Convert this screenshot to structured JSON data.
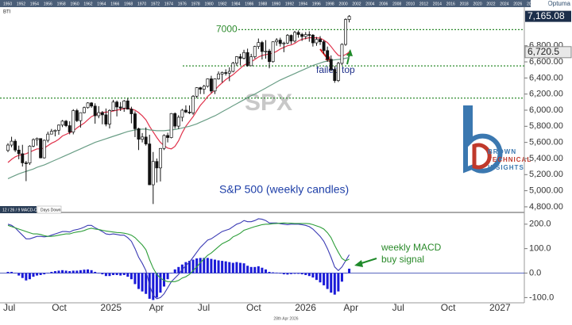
{
  "chart_data": [
    {
      "type": "candlestick",
      "title": "SPX",
      "subtitle": "S&P 500 (weekly candles)",
      "source_label": "BTI",
      "brand": "Optuma",
      "logo": [
        "BROWN",
        "TECHNICAL",
        "INSIGHTS"
      ],
      "overview_years": [
        "1950",
        "1952",
        "1954",
        "1956",
        "1958",
        "1960",
        "1962",
        "1964",
        "1966",
        "1968",
        "1970",
        "1972",
        "1974",
        "1976",
        "1978",
        "1980",
        "1982",
        "1984",
        "1986",
        "1988",
        "1990",
        "1992",
        "1994",
        "1996",
        "1998",
        "2000",
        "2002",
        "2004",
        "2006",
        "2008",
        "2010",
        "2012",
        "2014",
        "2016",
        "2018",
        "2020",
        "2022",
        "2024",
        "2026",
        "2028",
        "2030"
      ],
      "up_color": "#ffffff",
      "down_color": "#111111",
      "ohlc": [
        [
          5500,
          5590,
          5480,
          5567
        ],
        [
          5567,
          5670,
          5540,
          5615
        ],
        [
          5615,
          5640,
          5480,
          5505
        ],
        [
          5505,
          5560,
          5390,
          5459
        ],
        [
          5459,
          5570,
          5300,
          5346
        ],
        [
          5346,
          5370,
          5119,
          5344
        ],
        [
          5344,
          5565,
          5320,
          5554
        ],
        [
          5554,
          5650,
          5540,
          5634
        ],
        [
          5634,
          5660,
          5560,
          5648
        ],
        [
          5648,
          5650,
          5402,
          5408
        ],
        [
          5408,
          5636,
          5400,
          5626
        ],
        [
          5626,
          5733,
          5600,
          5703
        ],
        [
          5703,
          5767,
          5700,
          5738
        ],
        [
          5738,
          5760,
          5675,
          5751
        ],
        [
          5751,
          5822,
          5695,
          5815
        ],
        [
          5815,
          5878,
          5790,
          5864
        ],
        [
          5864,
          5878,
          5790,
          5808
        ],
        [
          5808,
          5862,
          5700,
          5729
        ],
        [
          5729,
          6012,
          5700,
          5995
        ],
        [
          5995,
          6017,
          5853,
          5870
        ],
        [
          5870,
          5972,
          5783,
          5969
        ],
        [
          5969,
          6045,
          5960,
          6032
        ],
        [
          6032,
          6099,
          6020,
          6090
        ],
        [
          6090,
          6100,
          6030,
          6051
        ],
        [
          6051,
          6085,
          5832,
          5931
        ],
        [
          5931,
          6050,
          5900,
          5970
        ],
        [
          5970,
          5990,
          5825,
          5942
        ],
        [
          5942,
          6021,
          5800,
          5827
        ],
        [
          5827,
          6010,
          5773,
          5997
        ],
        [
          5997,
          6128,
          5990,
          6101
        ],
        [
          6101,
          6120,
          5923,
          6040
        ],
        [
          6040,
          6101,
          5990,
          6026
        ],
        [
          6026,
          6127,
          5980,
          6115
        ],
        [
          6115,
          6147,
          6008,
          6013
        ],
        [
          6013,
          6043,
          5837,
          5955
        ],
        [
          5955,
          5986,
          5666,
          5770
        ],
        [
          5770,
          5782,
          5505,
          5639
        ],
        [
          5639,
          5716,
          5600,
          5667
        ],
        [
          5667,
          5786,
          5560,
          5581
        ],
        [
          5581,
          5695,
          5069,
          5074
        ],
        [
          5074,
          5481,
          4835,
          5363
        ],
        [
          5363,
          5400,
          5101,
          5283
        ],
        [
          5283,
          5529,
          5115,
          5525
        ],
        [
          5525,
          5700,
          5505,
          5686
        ],
        [
          5686,
          5720,
          5600,
          5660
        ],
        [
          5660,
          5964,
          5650,
          5958
        ],
        [
          5958,
          5972,
          5770,
          5802
        ],
        [
          5802,
          5938,
          5767,
          5912
        ],
        [
          5912,
          6017,
          5860,
          6000
        ],
        [
          6000,
          6060,
          5963,
          5977
        ],
        [
          5977,
          6059,
          5952,
          5967
        ],
        [
          5967,
          6187,
          5943,
          6173
        ],
        [
          6173,
          6284,
          6150,
          6279
        ],
        [
          6279,
          6290,
          6200,
          6260
        ],
        [
          6260,
          6315,
          6200,
          6297
        ],
        [
          6297,
          6395,
          6281,
          6389
        ],
        [
          6389,
          6427,
          6212,
          6238
        ],
        [
          6238,
          6395,
          6200,
          6389
        ],
        [
          6389,
          6481,
          6380,
          6450
        ],
        [
          6450,
          6480,
          6343,
          6467
        ],
        [
          6467,
          6508,
          6430,
          6460
        ],
        [
          6460,
          6532,
          6360,
          6482
        ],
        [
          6482,
          6600,
          6470,
          6584
        ],
        [
          6584,
          6671,
          6550,
          6664
        ],
        [
          6664,
          6700,
          6560,
          6644
        ],
        [
          6644,
          6750,
          6630,
          6716
        ],
        [
          6716,
          6764,
          6540,
          6552
        ],
        [
          6552,
          6700,
          6550,
          6664
        ],
        [
          6664,
          6800,
          6640,
          6791
        ],
        [
          6791,
          6890,
          6760,
          6840
        ],
        [
          6840,
          6860,
          6630,
          6728
        ],
        [
          6728,
          6870,
          6640,
          6734
        ],
        [
          6734,
          6760,
          6520,
          6603
        ],
        [
          6603,
          6855,
          6590,
          6849
        ],
        [
          6849,
          6895,
          6800,
          6870
        ],
        [
          6870,
          6900,
          6790,
          6827
        ],
        [
          6827,
          6850,
          6720,
          6834
        ],
        [
          6834,
          6945,
          6820,
          6929
        ],
        [
          6929,
          6940,
          6820,
          6858
        ],
        [
          6858,
          6985,
          6840,
          6966
        ],
        [
          6966,
          6990,
          6900,
          6940
        ],
        [
          6940,
          6960,
          6860,
          6915
        ],
        [
          6915,
          6970,
          6880,
          6939
        ],
        [
          6939,
          6980,
          6850,
          6932
        ],
        [
          6932,
          6945,
          6790,
          6836
        ],
        [
          6836,
          6910,
          6800,
          6880
        ],
        [
          6880,
          6920,
          6810,
          6850
        ],
        [
          6850,
          6870,
          6700,
          6740
        ],
        [
          6740,
          6790,
          6600,
          6632
        ],
        [
          6632,
          6680,
          6480,
          6506
        ],
        [
          6506,
          6550,
          6340,
          6368
        ],
        [
          6368,
          6600,
          6350,
          6582
        ],
        [
          6582,
          6830,
          6560,
          6817
        ],
        [
          6817,
          7140,
          6800,
          7126
        ],
        [
          7126,
          7180,
          7090,
          7165.08
        ]
      ],
      "series": [
        {
          "color": "#e0324b",
          "values": [
            5350,
            5390,
            5420,
            5440,
            5450,
            5460,
            5480,
            5500,
            5520,
            5520,
            5530,
            5560,
            5590,
            5610,
            5640,
            5680,
            5700,
            5720,
            5740,
            5780,
            5810,
            5840,
            5880,
            5920,
            5940,
            5960,
            5970,
            5975,
            5980,
            5990,
            6000,
            6010,
            6020,
            6020,
            6015,
            6000,
            5970,
            5930,
            5880,
            5800,
            5730,
            5660,
            5600,
            5560,
            5530,
            5520,
            5550,
            5620,
            5720,
            5800,
            5860,
            5920,
            5990,
            6060,
            6110,
            6170,
            6210,
            6250,
            6300,
            6340,
            6380,
            6410,
            6440,
            6480,
            6520,
            6560,
            6580,
            6600,
            6630,
            6660,
            6680,
            6690,
            6700,
            6710,
            6730,
            6760,
            6780,
            6800,
            6810,
            6830,
            6860,
            6880,
            6890,
            6900,
            6900,
            6900,
            6895,
            6870,
            6840,
            6790,
            6730,
            6680,
            6670,
            6690,
            6720.5
          ]
        },
        {
          "color": "#6a9e86",
          "values": [
            5150,
            5170,
            5190,
            5210,
            5225,
            5240,
            5255,
            5270,
            5290,
            5305,
            5320,
            5340,
            5360,
            5380,
            5400,
            5420,
            5440,
            5460,
            5480,
            5500,
            5520,
            5540,
            5560,
            5580,
            5600,
            5615,
            5630,
            5645,
            5660,
            5675,
            5690,
            5705,
            5720,
            5735,
            5745,
            5755,
            5760,
            5765,
            5765,
            5755,
            5750,
            5745,
            5745,
            5745,
            5750,
            5755,
            5760,
            5770,
            5780,
            5790,
            5800,
            5815,
            5830,
            5850,
            5870,
            5890,
            5910,
            5930,
            5955,
            5980,
            6005,
            6030,
            6055,
            6080,
            6105,
            6130,
            6155,
            6180,
            6200,
            6225,
            6250,
            6275,
            6300,
            6325,
            6350,
            6375,
            6395,
            6415,
            6435,
            6455,
            6475,
            6495,
            6515,
            6535,
            6555,
            6570,
            6585,
            6600,
            6610,
            6620,
            6625,
            6630,
            6635,
            6645,
            6655
          ]
        }
      ],
      "ylim": [
        4750,
        7250
      ],
      "yticks": [
        {
          "value": 4800,
          "label": "4,800.00"
        },
        {
          "value": 5000,
          "label": "5,000.00"
        },
        {
          "value": 5200,
          "label": "5,200.00"
        },
        {
          "value": 5400,
          "label": "5,400.00"
        },
        {
          "value": 5600,
          "label": "5,600.00"
        },
        {
          "value": 5800,
          "label": "5,800.00"
        },
        {
          "value": 6000,
          "label": "6,000.00"
        },
        {
          "value": 6200,
          "label": "6,200.00"
        },
        {
          "value": 6400,
          "label": "6,400.00"
        },
        {
          "value": 6600,
          "label": "6,600.00"
        },
        {
          "value": 6800,
          "label": "6,800.00"
        }
      ],
      "hlines": [
        {
          "value": 7000,
          "label": "7000"
        },
        {
          "value": 6550
        },
        {
          "value": 6150
        }
      ],
      "hline_color": "#2e8b2e",
      "price_tags": [
        {
          "value": 7165.08,
          "label": "7,165.08"
        },
        {
          "value": 6720.5,
          "label": "6,720.5"
        }
      ],
      "annotation": "failed top"
    },
    {
      "type": "macd",
      "panel_tabs": [
        "12 / 26 / 9 MACD-C",
        "Days Down"
      ],
      "series": [
        {
          "color": "#3a3ab4",
          "values": [
            200,
            195,
            185,
            170,
            155,
            140,
            140,
            145,
            150,
            150,
            148,
            150,
            155,
            160,
            165,
            170,
            170,
            168,
            175,
            178,
            182,
            188,
            195,
            195,
            185,
            178,
            170,
            160,
            158,
            160,
            158,
            155,
            155,
            145,
            130,
            100,
            65,
            40,
            10,
            -50,
            -90,
            -105,
            -100,
            -85,
            -60,
            -35,
            -20,
            -5,
            15,
            30,
            45,
            65,
            85,
            105,
            120,
            135,
            140,
            150,
            160,
            170,
            175,
            180,
            190,
            200,
            205,
            215,
            210,
            210,
            215,
            222,
            220,
            215,
            205,
            205,
            205,
            202,
            200,
            198,
            200,
            200,
            200,
            198,
            195,
            190,
            180,
            165,
            150,
            130,
            100,
            65,
            25,
            10,
            25,
            50,
            75
          ]
        },
        {
          "color": "#2e9e3a",
          "values": [
            195,
            190,
            185,
            180,
            175,
            170,
            165,
            160,
            160,
            158,
            153,
            150,
            150,
            152,
            155,
            158,
            160,
            160,
            165,
            168,
            170,
            174,
            180,
            183,
            180,
            178,
            175,
            172,
            170,
            168,
            166,
            165,
            163,
            160,
            155,
            145,
            130,
            115,
            95,
            55,
            20,
            -5,
            -20,
            -30,
            -35,
            -35,
            -35,
            -30,
            -20,
            -15,
            -5,
            10,
            25,
            43,
            58,
            73,
            82,
            95,
            108,
            120,
            127,
            135,
            148,
            155,
            163,
            175,
            180,
            185,
            190,
            194,
            198,
            200,
            200,
            202,
            203,
            204,
            205,
            204,
            204,
            203,
            203,
            203,
            203,
            202,
            198,
            193,
            188,
            180,
            165,
            145,
            113,
            85,
            60,
            50,
            57
          ]
        }
      ],
      "histogram": {
        "color": "#1a1ad8",
        "values": [
          5,
          5,
          0,
          -10,
          -20,
          -30,
          -25,
          -15,
          -10,
          -8,
          -5,
          0,
          5,
          8,
          10,
          12,
          10,
          8,
          10,
          10,
          12,
          14,
          15,
          12,
          5,
          0,
          -5,
          -12,
          -12,
          -8,
          -8,
          -10,
          -8,
          -15,
          -25,
          -45,
          -65,
          -75,
          -85,
          -105,
          -110,
          -100,
          -80,
          -55,
          -25,
          0,
          15,
          25,
          35,
          45,
          50,
          55,
          60,
          62,
          62,
          62,
          58,
          55,
          52,
          50,
          48,
          45,
          42,
          45,
          42,
          40,
          30,
          25,
          25,
          28,
          22,
          15,
          5,
          3,
          2,
          -2,
          -5,
          -6,
          -4,
          -3,
          -3,
          -5,
          -8,
          -12,
          -18,
          -28,
          -38,
          -50,
          -65,
          -80,
          -88,
          -75,
          -35,
          0,
          18
        ]
      },
      "ylim": [
        -115,
        235
      ],
      "yticks": [
        {
          "value": 200,
          "label": "200.0"
        },
        {
          "value": 100,
          "label": "100.0"
        },
        {
          "value": 0,
          "label": "0.0"
        },
        {
          "value": -100,
          "label": "-100.0"
        }
      ],
      "annotation": [
        "weekly MACD",
        "buy signal"
      ],
      "xtick_labels": [
        "Jul",
        "Oct",
        "2025",
        "Apr",
        "Jul",
        "Oct",
        "2026",
        "Apr",
        "Jul",
        "Oct",
        "2027"
      ],
      "date_label": "28th Apr 2026"
    }
  ]
}
